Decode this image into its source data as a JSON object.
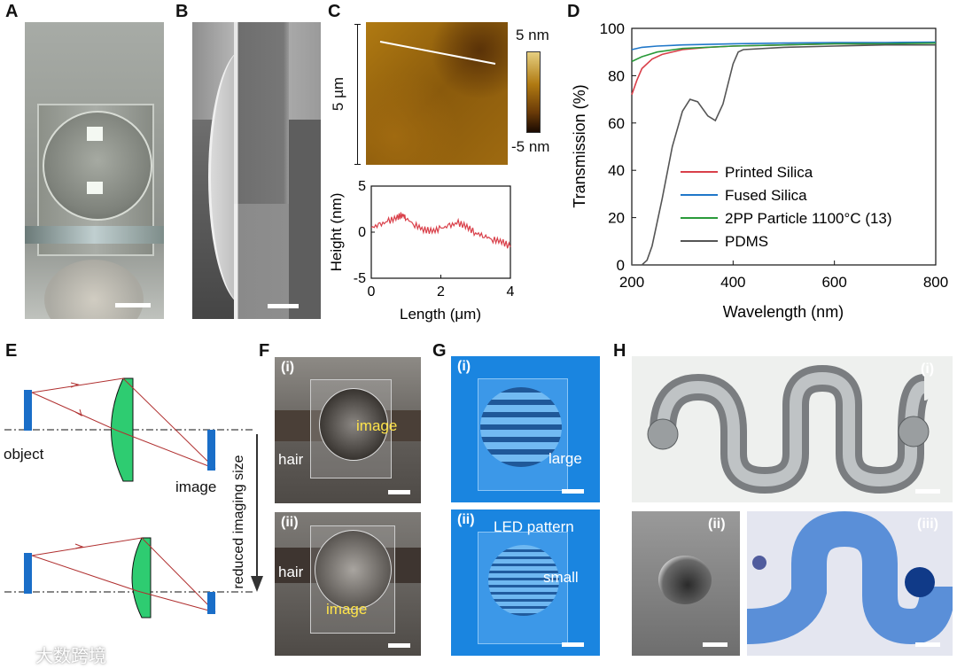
{
  "panels": {
    "A": "A",
    "B": "B",
    "C": "C",
    "D": "D",
    "E": "E",
    "F": "F",
    "G": "G",
    "H": "H"
  },
  "panel_c": {
    "afm_scale_label": "5 µm",
    "colorbar_max": "5 nm",
    "colorbar_min": "-5 nm"
  },
  "panel_e": {
    "object_label": "object",
    "image_label": "image"
  },
  "panel_f": {
    "sub_i": "(i)",
    "sub_ii": "(ii)",
    "hair_label": "hair",
    "image_label": "image",
    "arrow_label": "reduced imaging size"
  },
  "panel_g": {
    "sub_i": "(i)",
    "sub_ii": "(ii)",
    "large_label": "large",
    "small_label": "small",
    "led_label": "LED pattern"
  },
  "panel_h": {
    "sub_i": "(i)",
    "sub_ii": "(ii)",
    "sub_iii": "(iii)"
  },
  "watermark": "大数跨境",
  "colors": {
    "printed": "#d9404a",
    "fused": "#1f77c9",
    "pp": "#2a9a3a",
    "pdms": "#555555",
    "lens": "#2ecc71",
    "plate": "#1a6ec8",
    "ray": "#b03030"
  },
  "chart_data": [
    {
      "type": "line",
      "id": "C-profile",
      "title": "",
      "xlabel": "Length (μm)",
      "ylabel": "Height (nm)",
      "xlim": [
        0,
        4
      ],
      "ylim": [
        -5,
        5
      ],
      "xticks": [
        "0",
        "2",
        "4"
      ],
      "yticks": [
        "-5",
        "0",
        "5"
      ],
      "series": [
        {
          "name": "height profile",
          "x": [
            0,
            0.25,
            0.5,
            0.75,
            0.9,
            1.0,
            1.25,
            1.5,
            1.75,
            2.0,
            2.25,
            2.5,
            2.75,
            3.0,
            3.25,
            3.5,
            3.75,
            4.0
          ],
          "y": [
            0.5,
            0.8,
            1.2,
            1.6,
            1.9,
            1.5,
            0.8,
            0.3,
            0.1,
            0.4,
            0.7,
            1.0,
            0.6,
            -0.1,
            -0.4,
            -0.8,
            -1.0,
            -1.6
          ]
        }
      ]
    },
    {
      "type": "line",
      "id": "D-transmission",
      "title": "",
      "xlabel": "Wavelength (nm)",
      "ylabel": "Transmission (%)",
      "xlim": [
        200,
        800
      ],
      "ylim": [
        0,
        100
      ],
      "xticks": [
        "200",
        "400",
        "600",
        "800"
      ],
      "yticks": [
        "0",
        "20",
        "40",
        "60",
        "80",
        "100"
      ],
      "legend_position": "center",
      "series": [
        {
          "name": "Printed Silica",
          "x": [
            200,
            210,
            220,
            240,
            260,
            300,
            350,
            400,
            500,
            600,
            700,
            800
          ],
          "y": [
            72,
            78,
            83,
            87,
            89,
            91,
            92,
            92.5,
            93,
            93.5,
            93.5,
            94
          ]
        },
        {
          "name": "Fused Silica",
          "x": [
            200,
            220,
            250,
            300,
            400,
            500,
            600,
            700,
            800
          ],
          "y": [
            91,
            92,
            92.5,
            93,
            93.5,
            93.8,
            94,
            94,
            94.2
          ]
        },
        {
          "name": "2PP Particle 1100°C (13)",
          "x": [
            200,
            220,
            250,
            300,
            400,
            500,
            600,
            700,
            800
          ],
          "y": [
            86,
            88,
            90,
            91.5,
            92.5,
            93,
            93.5,
            93.5,
            93.8
          ]
        },
        {
          "name": "PDMS",
          "x": [
            200,
            220,
            230,
            240,
            260,
            280,
            300,
            315,
            330,
            350,
            365,
            380,
            400,
            410,
            420,
            500,
            600,
            700,
            800
          ],
          "y": [
            0,
            0,
            2,
            8,
            28,
            50,
            65,
            70,
            69,
            63,
            61,
            68,
            85,
            90,
            91,
            92,
            92.5,
            93,
            93
          ]
        }
      ]
    }
  ]
}
